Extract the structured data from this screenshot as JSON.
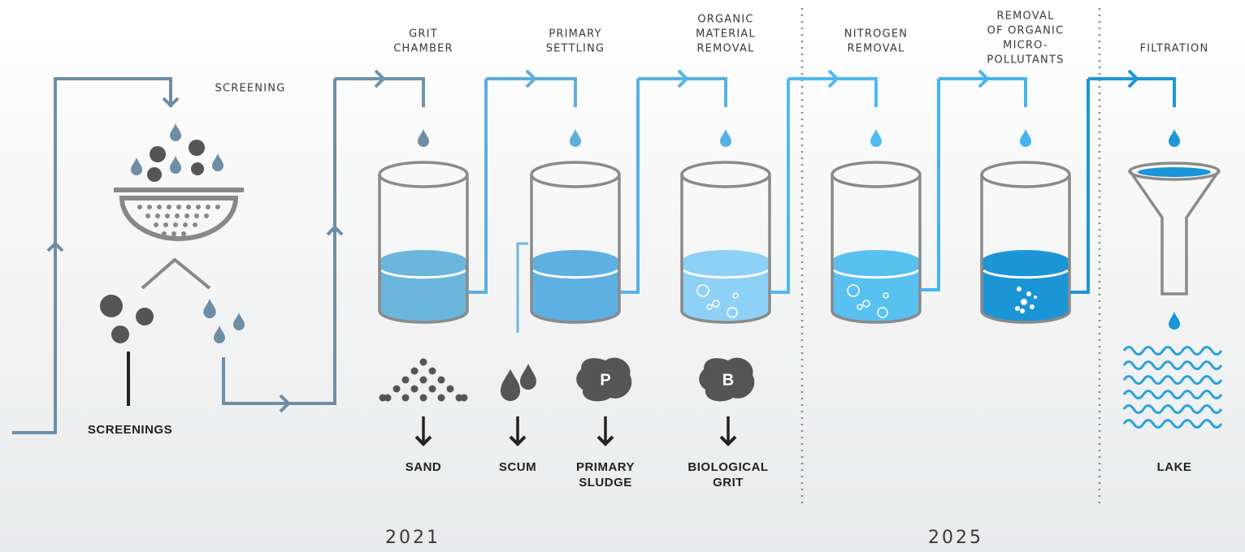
{
  "screening": {
    "label": "SCREENING",
    "output": "SCREENINGS"
  },
  "stages": [
    {
      "label": [
        "GRIT",
        "CHAMBER"
      ]
    },
    {
      "label": [
        "PRIMARY",
        "SETTLING"
      ]
    },
    {
      "label": [
        "ORGANIC",
        "MATERIAL",
        "REMOVAL"
      ]
    },
    {
      "label": [
        "NITROGEN",
        "REMOVAL"
      ]
    },
    {
      "label": [
        "REMOVAL",
        "OF ORGANIC",
        "MICRO-",
        "POLLUTANTS"
      ]
    },
    {
      "label": [
        "FILTRATION"
      ]
    }
  ],
  "outputs": [
    {
      "label": [
        "SAND"
      ]
    },
    {
      "label": [
        "SCUM"
      ]
    },
    {
      "label": [
        "PRIMARY",
        "SLUDGE"
      ],
      "marker": "P"
    },
    {
      "label": [
        "BIOLOGICAL",
        "GRIT"
      ],
      "marker": "B"
    },
    {
      "label": [
        "LAKE"
      ]
    }
  ],
  "years": [
    "2021",
    "2025"
  ]
}
